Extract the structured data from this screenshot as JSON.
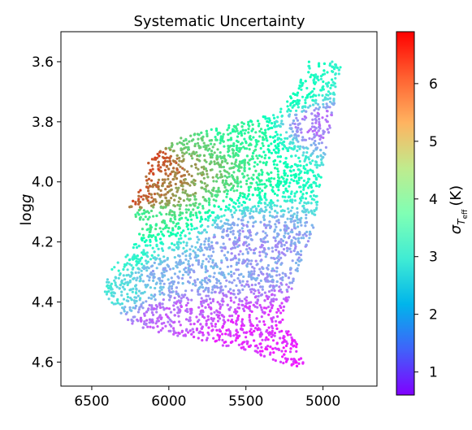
{
  "chart_data": {
    "type": "scatter",
    "title": "Systematic Uncertainty",
    "xlabel": "",
    "ylabel_prefix": "log",
    "ylabel_italic": "g",
    "xlim": [
      6700,
      4650
    ],
    "ylim": [
      4.68,
      3.5
    ],
    "x_ticks": [
      6500,
      6000,
      5500,
      5000
    ],
    "x_tick_labels": [
      "6500",
      "6000",
      "5500",
      "5000"
    ],
    "y_ticks": [
      3.6,
      3.8,
      4.0,
      4.2,
      4.4,
      4.6
    ],
    "y_tick_labels": [
      "3.6",
      "3.8",
      "4.0",
      "4.2",
      "4.4",
      "4.6"
    ],
    "colorbar": {
      "label_symbol": "σ",
      "label_sub": "T",
      "label_subsub": "eff",
      "label_unit": "(K)",
      "min": 0.6,
      "max": 6.9,
      "ticks": [
        1,
        2,
        3,
        4,
        5,
        6
      ],
      "tick_labels": [
        "1",
        "2",
        "3",
        "4",
        "5",
        "6"
      ],
      "colormap": "rainbow"
    },
    "region": {
      "outline_teff_logg": [
        [
          5100,
          3.6
        ],
        [
          4880,
          3.6
        ],
        [
          4930,
          3.75
        ],
        [
          5000,
          3.95
        ],
        [
          5060,
          4.15
        ],
        [
          5180,
          4.32
        ],
        [
          5260,
          4.45
        ],
        [
          5160,
          4.55
        ],
        [
          5110,
          4.63
        ],
        [
          5450,
          4.57
        ],
        [
          5850,
          4.52
        ],
        [
          6100,
          4.5
        ],
        [
          6250,
          4.47
        ],
        [
          6420,
          4.38
        ],
        [
          6390,
          4.3
        ],
        [
          6240,
          4.22
        ],
        [
          6190,
          4.14
        ],
        [
          6260,
          4.08
        ],
        [
          6150,
          4.0
        ],
        [
          6150,
          3.95
        ],
        [
          6080,
          3.9
        ],
        [
          5960,
          3.86
        ],
        [
          5700,
          3.82
        ],
        [
          5500,
          3.8
        ],
        [
          5300,
          3.76
        ],
        [
          5180,
          3.7
        ]
      ],
      "uncertainty_anchors_K": [
        {
          "teff": 6160,
          "logg": 3.92,
          "sigma": 6.3
        },
        {
          "teff": 6255,
          "logg": 4.06,
          "sigma": 6.2
        },
        {
          "teff": 5900,
          "logg": 3.86,
          "sigma": 5.0
        },
        {
          "teff": 5600,
          "logg": 3.83,
          "sigma": 4.3
        },
        {
          "teff": 5280,
          "logg": 3.72,
          "sigma": 3.6
        },
        {
          "teff": 6200,
          "logg": 4.12,
          "sigma": 4.5
        },
        {
          "teff": 6300,
          "logg": 4.25,
          "sigma": 3.2
        },
        {
          "teff": 6400,
          "logg": 4.35,
          "sigma": 2.8
        },
        {
          "teff": 5900,
          "logg": 4.45,
          "sigma": 1.4
        },
        {
          "teff": 5550,
          "logg": 4.5,
          "sigma": 1.0
        },
        {
          "teff": 5200,
          "logg": 4.58,
          "sigma": 0.9
        },
        {
          "teff": 5000,
          "logg": 3.8,
          "sigma": 1.6
        },
        {
          "teff": 5500,
          "logg": 4.2,
          "sigma": 1.9
        },
        {
          "teff": 6000,
          "logg": 4.3,
          "sigma": 2.1
        }
      ]
    }
  }
}
